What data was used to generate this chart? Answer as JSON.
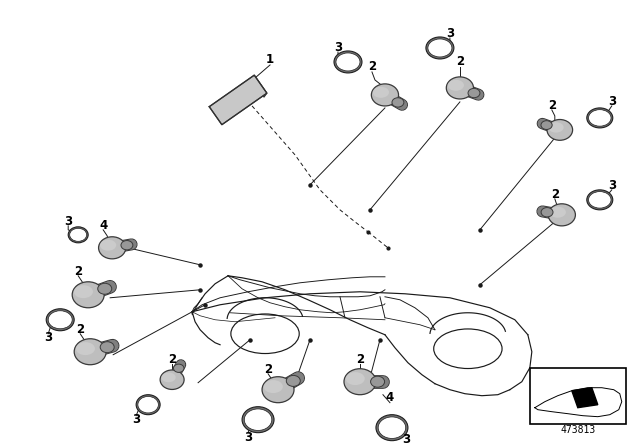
{
  "part_number": "473813",
  "bg": "#ffffff",
  "lc": "#1a1a1a",
  "fig_w": 6.4,
  "fig_h": 4.48,
  "sensor_fc": "#b8b8b8",
  "sensor_ec": "#404040",
  "oring_fc": "#707070",
  "oring_ec": "#202020"
}
